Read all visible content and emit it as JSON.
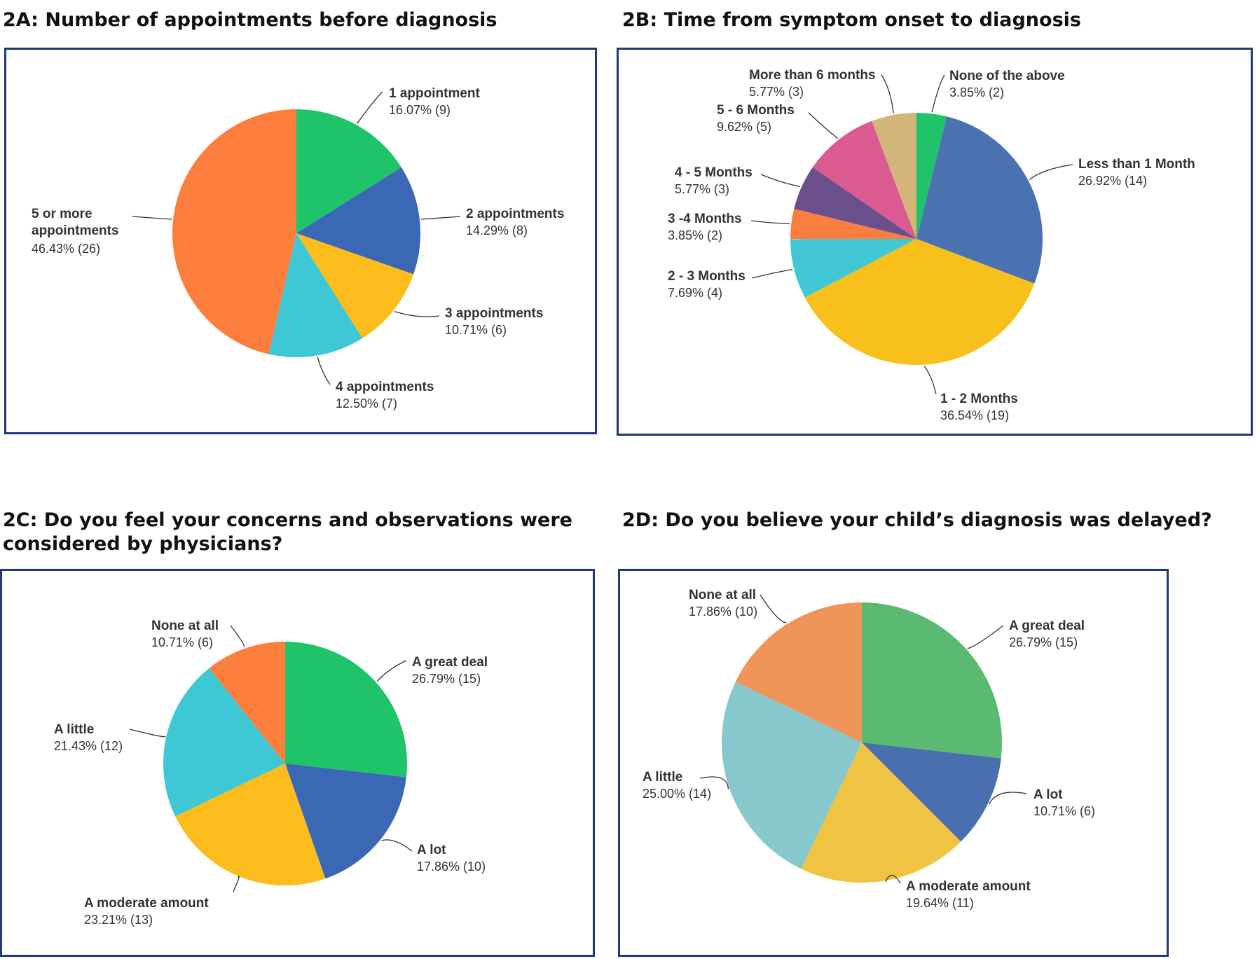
{
  "chart_data": [
    {
      "id": "2A",
      "type": "pie",
      "title": "2A: Number of appointments before diagnosis",
      "slices": [
        {
          "label": "1 appointment",
          "value_text": "16.07% (9)",
          "percent": 16.07,
          "count": 9,
          "color": "#1fc46a"
        },
        {
          "label": "2 appointments",
          "value_text": "14.29% (8)",
          "percent": 14.29,
          "count": 8,
          "color": "#3b68b5"
        },
        {
          "label": "3 appointments",
          "value_text": "10.71% (6)",
          "percent": 10.71,
          "count": 6,
          "color": "#fbbc1c"
        },
        {
          "label": "4 appointments",
          "value_text": "12.50% (7)",
          "percent": 12.5,
          "count": 7,
          "color": "#3ec8d6"
        },
        {
          "label": "5 or more\nappointments",
          "value_text": "46.43% (26)",
          "percent": 46.43,
          "count": 26,
          "color": "#fd7e3c"
        }
      ]
    },
    {
      "id": "2B",
      "type": "pie",
      "title": "2B: Time from symptom onset to diagnosis",
      "slices": [
        {
          "label": "None of the above",
          "value_text": "3.85% (2)",
          "percent": 3.85,
          "count": 2,
          "color": "#1fc46a"
        },
        {
          "label": "Less than 1 Month",
          "value_text": "26.92% (14)",
          "percent": 26.92,
          "count": 14,
          "color": "#4a72b0"
        },
        {
          "label": "1 - 2 Months",
          "value_text": "36.54% (19)",
          "percent": 36.54,
          "count": 19,
          "color": "#f8c01a"
        },
        {
          "label": "2 - 3 Months",
          "value_text": "7.69% (4)",
          "percent": 7.69,
          "count": 4,
          "color": "#42c7d5"
        },
        {
          "label": "3 -4 Months",
          "value_text": "3.85% (2)",
          "percent": 3.85,
          "count": 2,
          "color": "#fb7e3e"
        },
        {
          "label": "4 - 5 Months",
          "value_text": "5.77% (3)",
          "percent": 5.77,
          "count": 3,
          "color": "#6b4f8c"
        },
        {
          "label": "5 - 6 Months",
          "value_text": "9.62% (5)",
          "percent": 9.62,
          "count": 5,
          "color": "#d95b92"
        },
        {
          "label": "More than 6 months",
          "value_text": "5.77% (3)",
          "percent": 5.77,
          "count": 3,
          "color": "#d3b57a"
        }
      ]
    },
    {
      "id": "2C",
      "type": "pie",
      "title": "2C: Do you feel your concerns and observations were\n considered by physicians?",
      "slices": [
        {
          "label": "A great deal",
          "value_text": "26.79% (15)",
          "percent": 26.79,
          "count": 15,
          "color": "#1fc46a"
        },
        {
          "label": "A lot",
          "value_text": "17.86% (10)",
          "percent": 17.86,
          "count": 10,
          "color": "#3b68b5"
        },
        {
          "label": "A moderate amount",
          "value_text": "23.21% (13)",
          "percent": 23.21,
          "count": 13,
          "color": "#fbbc1c"
        },
        {
          "label": "A little",
          "value_text": "21.43% (12)",
          "percent": 21.43,
          "count": 12,
          "color": "#3ec8d6"
        },
        {
          "label": "None at all",
          "value_text": "10.71% (6)",
          "percent": 10.71,
          "count": 6,
          "color": "#fd7e3c"
        }
      ]
    },
    {
      "id": "2D",
      "type": "pie",
      "title": "2D: Do you believe your child’s diagnosis was delayed?",
      "slices": [
        {
          "label": "A great deal",
          "value_text": "26.79% (15)",
          "percent": 26.79,
          "count": 15,
          "color": "#5bba72"
        },
        {
          "label": "A lot",
          "value_text": "10.71% (6)",
          "percent": 10.71,
          "count": 6,
          "color": "#4a6fae"
        },
        {
          "label": "A moderate amount",
          "value_text": "19.64% (11)",
          "percent": 19.64,
          "count": 11,
          "color": "#efc443"
        },
        {
          "label": "A little",
          "value_text": "25.00% (14)",
          "percent": 25.0,
          "count": 14,
          "color": "#86c8cc"
        },
        {
          "label": "None at all",
          "value_text": "17.86% (10)",
          "percent": 17.86,
          "count": 10,
          "color": "#ef9559"
        }
      ]
    }
  ]
}
